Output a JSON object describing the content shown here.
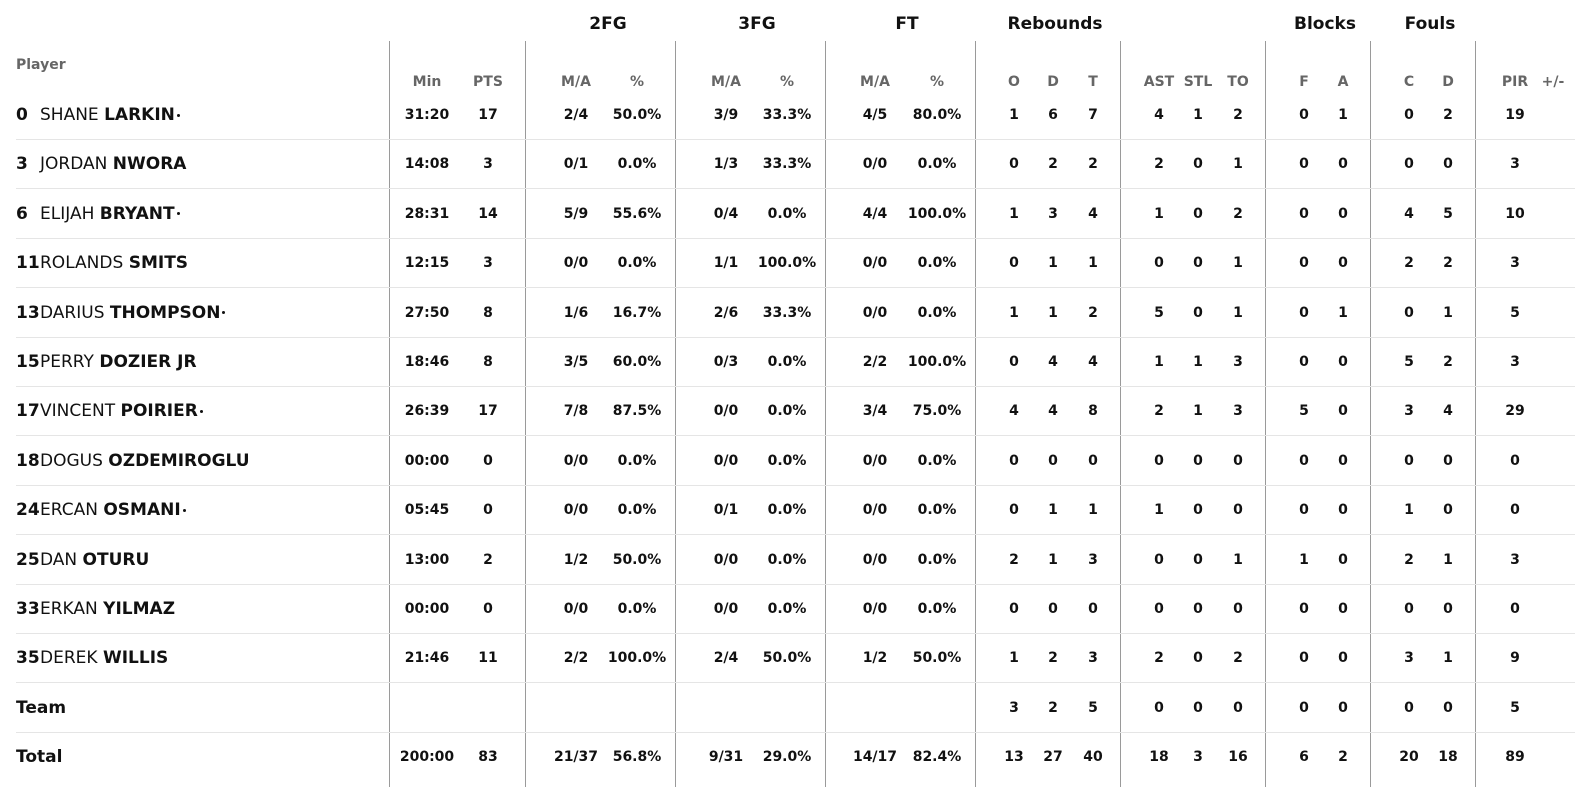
{
  "header": {
    "player_label": "Player",
    "groups": [
      "2FG",
      "3FG",
      "FT",
      "Rebounds",
      "Blocks",
      "Fouls"
    ],
    "columns": [
      "Min",
      "PTS",
      "M/A",
      "%",
      "M/A",
      "%",
      "M/A",
      "%",
      "O",
      "D",
      "T",
      "AST",
      "STL",
      "TO",
      "F",
      "A",
      "C",
      "D",
      "PIR",
      "+/-"
    ]
  },
  "players": [
    {
      "num": "0",
      "first": "SHANE",
      "last": "LARKIN",
      "starter": true,
      "stats": [
        "31:20",
        "17",
        "2/4",
        "50.0%",
        "3/9",
        "33.3%",
        "4/5",
        "80.0%",
        "1",
        "6",
        "7",
        "4",
        "1",
        "2",
        "0",
        "1",
        "0",
        "2",
        "19",
        ""
      ]
    },
    {
      "num": "3",
      "first": "JORDAN",
      "last": "NWORA",
      "starter": false,
      "stats": [
        "14:08",
        "3",
        "0/1",
        "0.0%",
        "1/3",
        "33.3%",
        "0/0",
        "0.0%",
        "0",
        "2",
        "2",
        "2",
        "0",
        "1",
        "0",
        "0",
        "0",
        "0",
        "3",
        ""
      ]
    },
    {
      "num": "6",
      "first": "ELIJAH",
      "last": "BRYANT",
      "starter": true,
      "stats": [
        "28:31",
        "14",
        "5/9",
        "55.6%",
        "0/4",
        "0.0%",
        "4/4",
        "100.0%",
        "1",
        "3",
        "4",
        "1",
        "0",
        "2",
        "0",
        "0",
        "4",
        "5",
        "10",
        ""
      ]
    },
    {
      "num": "11",
      "first": "ROLANDS",
      "last": "SMITS",
      "starter": false,
      "stats": [
        "12:15",
        "3",
        "0/0",
        "0.0%",
        "1/1",
        "100.0%",
        "0/0",
        "0.0%",
        "0",
        "1",
        "1",
        "0",
        "0",
        "1",
        "0",
        "0",
        "2",
        "2",
        "3",
        ""
      ]
    },
    {
      "num": "13",
      "first": "DARIUS",
      "last": "THOMPSON",
      "starter": true,
      "stats": [
        "27:50",
        "8",
        "1/6",
        "16.7%",
        "2/6",
        "33.3%",
        "0/0",
        "0.0%",
        "1",
        "1",
        "2",
        "5",
        "0",
        "1",
        "0",
        "1",
        "0",
        "1",
        "5",
        ""
      ]
    },
    {
      "num": "15",
      "first": "PERRY",
      "last": "DOZIER JR",
      "starter": false,
      "stats": [
        "18:46",
        "8",
        "3/5",
        "60.0%",
        "0/3",
        "0.0%",
        "2/2",
        "100.0%",
        "0",
        "4",
        "4",
        "1",
        "1",
        "3",
        "0",
        "0",
        "5",
        "2",
        "3",
        ""
      ]
    },
    {
      "num": "17",
      "first": "VINCENT",
      "last": "POIRIER",
      "starter": true,
      "stats": [
        "26:39",
        "17",
        "7/8",
        "87.5%",
        "0/0",
        "0.0%",
        "3/4",
        "75.0%",
        "4",
        "4",
        "8",
        "2",
        "1",
        "3",
        "5",
        "0",
        "3",
        "4",
        "29",
        ""
      ]
    },
    {
      "num": "18",
      "first": "DOGUS",
      "last": "OZDEMIROGLU",
      "starter": false,
      "stats": [
        "00:00",
        "0",
        "0/0",
        "0.0%",
        "0/0",
        "0.0%",
        "0/0",
        "0.0%",
        "0",
        "0",
        "0",
        "0",
        "0",
        "0",
        "0",
        "0",
        "0",
        "0",
        "0",
        ""
      ]
    },
    {
      "num": "24",
      "first": "ERCAN",
      "last": "OSMANI",
      "starter": true,
      "stats": [
        "05:45",
        "0",
        "0/0",
        "0.0%",
        "0/1",
        "0.0%",
        "0/0",
        "0.0%",
        "0",
        "1",
        "1",
        "1",
        "0",
        "0",
        "0",
        "0",
        "1",
        "0",
        "0",
        ""
      ]
    },
    {
      "num": "25",
      "first": "DAN",
      "last": "OTURU",
      "starter": false,
      "stats": [
        "13:00",
        "2",
        "1/2",
        "50.0%",
        "0/0",
        "0.0%",
        "0/0",
        "0.0%",
        "2",
        "1",
        "3",
        "0",
        "0",
        "1",
        "1",
        "0",
        "2",
        "1",
        "3",
        ""
      ]
    },
    {
      "num": "33",
      "first": "ERKAN",
      "last": "YILMAZ",
      "starter": false,
      "stats": [
        "00:00",
        "0",
        "0/0",
        "0.0%",
        "0/0",
        "0.0%",
        "0/0",
        "0.0%",
        "0",
        "0",
        "0",
        "0",
        "0",
        "0",
        "0",
        "0",
        "0",
        "0",
        "0",
        ""
      ]
    },
    {
      "num": "35",
      "first": "DEREK",
      "last": "WILLIS",
      "starter": false,
      "stats": [
        "21:46",
        "11",
        "2/2",
        "100.0%",
        "2/4",
        "50.0%",
        "1/2",
        "50.0%",
        "1",
        "2",
        "3",
        "2",
        "0",
        "2",
        "0",
        "0",
        "3",
        "1",
        "9",
        ""
      ]
    }
  ],
  "team": {
    "label": "Team",
    "stats": [
      "",
      "",
      "",
      "",
      "",
      "",
      "",
      "",
      "3",
      "2",
      "5",
      "0",
      "0",
      "0",
      "0",
      "0",
      "0",
      "0",
      "5",
      ""
    ]
  },
  "total": {
    "label": "Total",
    "stats": [
      "200:00",
      "83",
      "21/37",
      "56.8%",
      "9/31",
      "29.0%",
      "14/17",
      "82.4%",
      "13",
      "27",
      "40",
      "18",
      "3",
      "16",
      "6",
      "2",
      "20",
      "18",
      "89",
      ""
    ]
  }
}
